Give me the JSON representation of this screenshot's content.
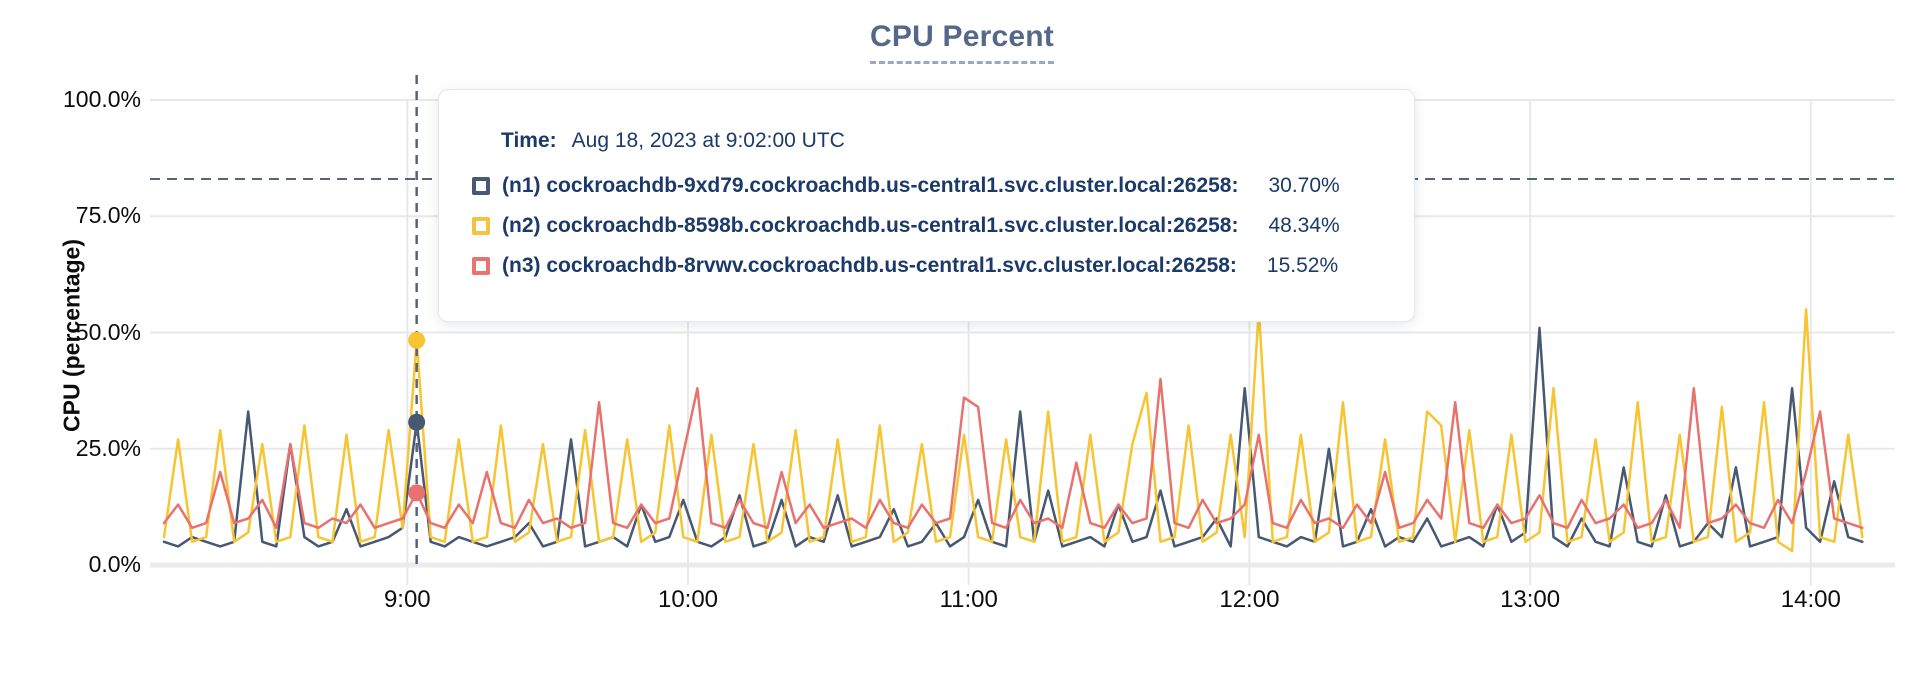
{
  "page": {
    "background": "#ffffff"
  },
  "header": {
    "title": "CPU Percent"
  },
  "tooltip": {
    "time_label": "Time:",
    "time_value": "Aug 18, 2023 at 9:02:00 UTC",
    "rows": [
      {
        "name": "(n1) cockroachdb-9xd79.cockroachdb.us-central1.svc.cluster.local:26258:",
        "value": "30.70%",
        "color": "#475872"
      },
      {
        "name": "(n2) cockroachdb-8598b.cockroachdb.us-central1.svc.cluster.local:26258:",
        "value": "48.34%",
        "color": "#f5c242"
      },
      {
        "name": "(n3) cockroachdb-8rvwv.cockroachdb.us-central1.svc.cluster.local:26258:",
        "value": "15.52%",
        "color": "#e8736f"
      }
    ]
  },
  "colors": {
    "grid": "#e8e8e8",
    "grid_zero": "#ebebeb",
    "crosshair": "#53657d",
    "threshold": "#53657d",
    "title": "#56688a",
    "tooltip_text": "#1c3a69"
  },
  "chart_data": {
    "type": "line",
    "title": "CPU Percent",
    "ylabel": "CPU (percentage)",
    "xlabel": "",
    "ylim": [
      0,
      100
    ],
    "grid": true,
    "legend_position": "tooltip",
    "y_ticks": [
      {
        "label": "100.0%",
        "value": 100
      },
      {
        "label": "75.0%",
        "value": 75
      },
      {
        "label": "50.0%",
        "value": 50
      },
      {
        "label": "25.0%",
        "value": 25
      },
      {
        "label": "0.0%",
        "value": 0
      }
    ],
    "x_ticks": [
      {
        "label": "9:00",
        "minute": 540
      },
      {
        "label": "10:00",
        "minute": 600
      },
      {
        "label": "11:00",
        "minute": 660
      },
      {
        "label": "12:00",
        "minute": 720
      },
      {
        "label": "13:00",
        "minute": 780
      },
      {
        "label": "14:00",
        "minute": 840
      }
    ],
    "x_domain_minutes": [
      485,
      858
    ],
    "x_start_minute": 488,
    "x_step_minutes": 3,
    "threshold_pct": 83,
    "hover": {
      "minute": 542,
      "index": 18,
      "time_text": "Aug 18, 2023 at 9:02:00 UTC"
    },
    "series": [
      {
        "id": "n1",
        "name": "(n1) cockroachdb-9xd79.cockroachdb.us-central1.svc.cluster.local:26258",
        "color": "#475872",
        "hover_value": 30.7,
        "values": [
          5,
          4,
          6,
          5,
          4,
          5,
          33,
          5,
          4,
          26,
          6,
          4,
          5,
          12,
          4,
          5,
          6,
          8,
          30.7,
          5,
          4,
          6,
          5,
          4,
          5,
          6,
          9,
          4,
          5,
          27,
          4,
          5,
          6,
          4,
          13,
          5,
          6,
          14,
          5,
          4,
          6,
          15,
          4,
          5,
          14,
          4,
          6,
          5,
          15,
          4,
          5,
          6,
          12,
          4,
          5,
          9,
          4,
          6,
          14,
          5,
          4,
          33,
          5,
          16,
          4,
          5,
          6,
          4,
          13,
          5,
          6,
          16,
          4,
          5,
          6,
          10,
          4,
          38,
          6,
          5,
          4,
          6,
          5,
          25,
          4,
          5,
          12,
          4,
          6,
          5,
          10,
          4,
          5,
          6,
          4,
          13,
          5,
          7,
          51,
          6,
          4,
          10,
          5,
          4,
          21,
          5,
          4,
          15,
          4,
          5,
          9,
          6,
          21,
          4,
          5,
          6,
          38,
          8,
          5,
          18,
          6,
          5
        ]
      },
      {
        "id": "n2",
        "name": "(n2) cockroachdb-8598b.cockroachdb.us-central1.svc.cluster.local:26258",
        "color": "#f7c432",
        "hover_value": 48.34,
        "values": [
          6,
          27,
          5,
          6,
          29,
          5,
          7,
          26,
          5,
          6,
          30,
          6,
          5,
          28,
          5,
          6,
          29,
          8,
          48.34,
          6,
          5,
          27,
          5,
          6,
          30,
          5,
          7,
          26,
          5,
          6,
          29,
          5,
          6,
          27,
          5,
          7,
          30,
          6,
          5,
          28,
          5,
          6,
          26,
          5,
          7,
          29,
          5,
          6,
          27,
          5,
          6,
          30,
          5,
          7,
          26,
          5,
          6,
          28,
          6,
          5,
          27,
          6,
          5,
          33,
          5,
          6,
          28,
          5,
          7,
          26,
          37,
          5,
          6,
          30,
          5,
          7,
          28,
          6,
          55,
          5,
          6,
          28,
          5,
          7,
          35,
          5,
          6,
          27,
          5,
          6,
          33,
          30,
          5,
          29,
          5,
          6,
          28,
          5,
          7,
          38,
          5,
          6,
          27,
          5,
          7,
          35,
          5,
          6,
          28,
          5,
          6,
          34,
          5,
          7,
          35,
          5,
          3,
          55,
          6,
          5,
          28,
          6
        ]
      },
      {
        "id": "n3",
        "name": "(n3) cockroachdb-8rvwv.cockroachdb.us-central1.svc.cluster.local:26258",
        "color": "#e8726e",
        "hover_value": 15.52,
        "values": [
          9,
          13,
          8,
          9,
          20,
          9,
          10,
          14,
          8,
          26,
          9,
          8,
          10,
          9,
          13,
          8,
          9,
          10,
          15.52,
          9,
          8,
          13,
          9,
          20,
          9,
          8,
          14,
          9,
          10,
          8,
          9,
          35,
          9,
          8,
          13,
          9,
          10,
          24,
          38,
          9,
          8,
          14,
          9,
          8,
          20,
          9,
          13,
          8,
          9,
          10,
          8,
          14,
          9,
          8,
          13,
          9,
          10,
          36,
          34,
          9,
          8,
          14,
          9,
          10,
          8,
          22,
          9,
          8,
          13,
          9,
          10,
          40,
          9,
          8,
          14,
          9,
          10,
          13,
          28,
          9,
          8,
          14,
          9,
          10,
          8,
          13,
          9,
          20,
          8,
          9,
          14,
          10,
          35,
          9,
          8,
          13,
          9,
          10,
          15,
          9,
          8,
          14,
          9,
          10,
          13,
          8,
          9,
          14,
          8,
          38,
          9,
          10,
          13,
          9,
          8,
          14,
          9,
          20,
          33,
          10,
          9,
          8
        ]
      }
    ]
  }
}
